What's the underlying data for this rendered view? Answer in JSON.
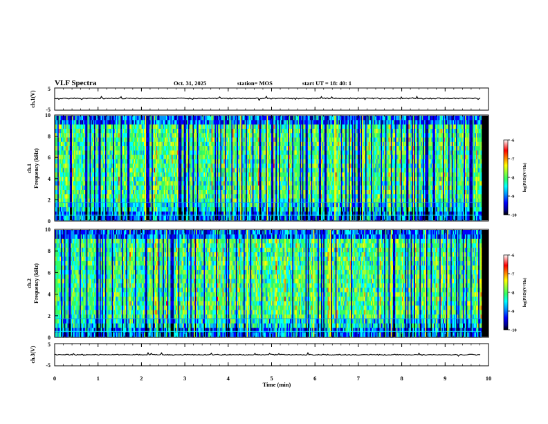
{
  "header": {
    "title": "VLF Spectra",
    "date": "Oct. 31, 2025",
    "station": "station= MOS",
    "start": "start  UT  =   18: 40: 1"
  },
  "colors": {
    "black": "#000000",
    "background": "#ffffff",
    "colormap": [
      "#000000",
      "#00008b",
      "#0000ff",
      "#0096ff",
      "#00ffff",
      "#32ff64",
      "#a0ff32",
      "#ffff00",
      "#ff8000",
      "#ff0000",
      "#ffffff"
    ]
  },
  "chart_data": {
    "type": "heatmap",
    "title": "VLF Spectra",
    "panels": [
      {
        "name": "ch1-waveform",
        "ylabel": "ch.1(V)",
        "ytick_labels": [
          "5",
          "-5"
        ],
        "ylim": [
          -5,
          5
        ]
      },
      {
        "name": "ch1-spectrogram",
        "ylabel_top": "ch.1",
        "ylabel": "Frequency (kHz)",
        "ytick_labels": [
          "0",
          "2",
          "4",
          "6",
          "8",
          "10"
        ],
        "ylim": [
          0,
          10
        ],
        "seed": 7
      },
      {
        "name": "ch2-spectrogram",
        "ylabel_top": "ch.2",
        "ylabel": "Frequency (kHz)",
        "ytick_labels": [
          "0",
          "2",
          "4",
          "6",
          "8",
          "10"
        ],
        "ylim": [
          0,
          10
        ],
        "seed": 19
      },
      {
        "name": "ch3-waveform",
        "ylabel": "ch.3(V)",
        "ytick_labels": [
          "5",
          "-5"
        ],
        "ylim": [
          -5,
          5
        ]
      }
    ],
    "xaxis": {
      "label": "Time (min)",
      "tick_labels": [
        "0",
        "1",
        "2",
        "3",
        "4",
        "5",
        "6",
        "7",
        "8",
        "9",
        "10"
      ],
      "xlim": [
        0,
        10
      ],
      "data_end": 9.83
    },
    "colorbar": {
      "label": "log(PSD)(V²/Hz)",
      "tick_labels": [
        "-6",
        "-7",
        "-8",
        "-9",
        "-10"
      ],
      "range": [
        -10,
        -6
      ]
    }
  }
}
